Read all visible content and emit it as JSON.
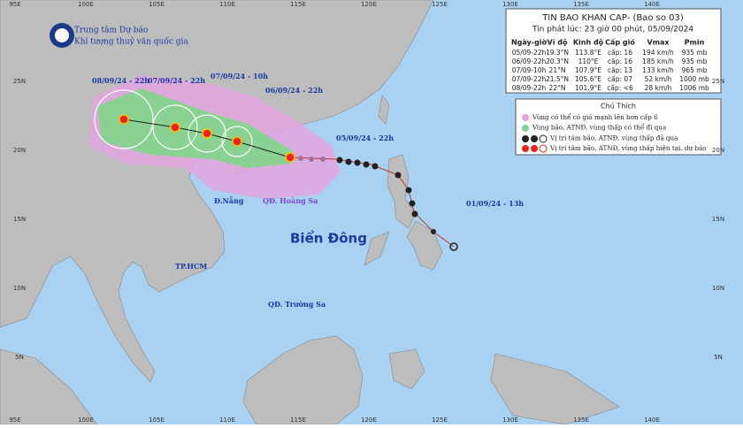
{
  "header": {
    "org_line1": "Trung tâm Dự báo",
    "org_line2": "Khí tượng thuỷ văn quốc gia"
  },
  "axes": {
    "longitudes": [
      "95E",
      "100E",
      "105E",
      "110E",
      "115E",
      "120E",
      "125E",
      "130E",
      "135E",
      "140E"
    ],
    "latitudes": [
      "25N",
      "20N",
      "15N",
      "10N",
      "5N"
    ]
  },
  "bulletin": {
    "title": "TIN BAO KHAN CAP- (Bao so 03)",
    "issued": "Tin phát lúc: 23 giờ 00 phút, 05/09/2024",
    "columns": [
      "Ngày-giờ",
      "Vĩ độ",
      "Kinh độ",
      "Cấp gió",
      "Vmax",
      "Pmin"
    ],
    "rows": [
      [
        "05/09-22h",
        "19.3°N",
        "113.8°E",
        "cấp: 16",
        "194 km/h",
        "935 mb"
      ],
      [
        "06/09-22h",
        "20.3°N",
        "110°E",
        "cấp: 16",
        "185 km/h",
        "935 mb"
      ],
      [
        "07/09-10h",
        "21°N",
        "107.9°E",
        "cấp: 13",
        "133 km/h",
        "965 mb"
      ],
      [
        "07/09-22h",
        "21.5°N",
        "105.6°E",
        "cấp: 07",
        "52 km/h",
        "1000 mb"
      ],
      [
        "08/09-22h",
        "22°N",
        "101.9°E",
        "cấp: <6",
        "28 km/h",
        "1006 mb"
      ]
    ]
  },
  "legend": {
    "title": "Chú Thích",
    "items": [
      "Vùng có thể có gió mạnh lên hơn cấp 6",
      "Vùng bão, ATNĐ, vùng thấp có thể đi qua",
      "Vị trí tâm bão, ATNĐ, vùng thấp đã qua",
      "Vị trí tâm bão, ATNĐ, vùng thấp hiện tại, dự báo"
    ]
  },
  "track_labels": [
    "08/09/24 - 22h",
    "07/09/24 - 22h",
    "07/09/24 - 10h",
    "06/09/24 - 22h",
    "05/09/24 - 22h",
    "01/09/24 - 13h"
  ],
  "places": [
    "Biển Đông",
    "Đ.Nẵng",
    "QĐ. Hoàng Sa",
    "TP.HCM",
    "QĐ. Trường Sa"
  ]
}
